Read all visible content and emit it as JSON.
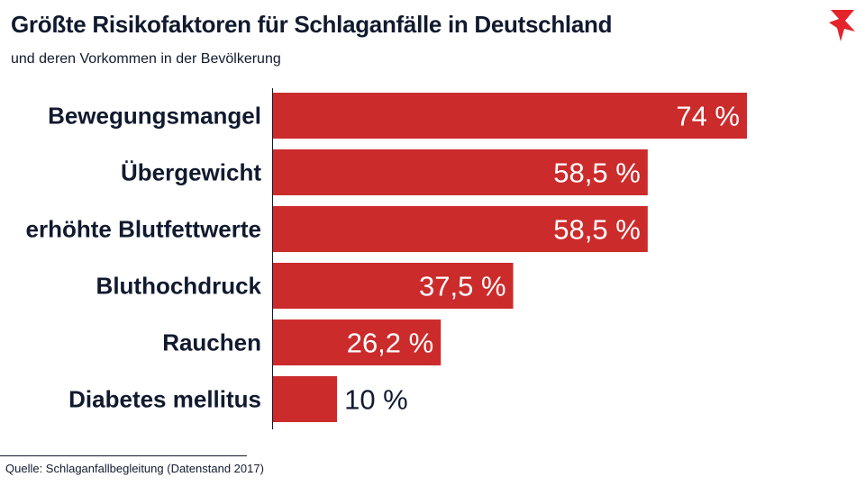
{
  "colors": {
    "bar": "#cc2b2b",
    "text": "#111a2e",
    "label_inside": "#ffffff",
    "logo": "#e3242b"
  },
  "logo_icon": "stern-star-logo",
  "chart_data": {
    "type": "bar",
    "orientation": "horizontal",
    "title": "Größte Risikofaktoren für Schlaganfälle in Deutschland",
    "subtitle": "und deren Vorkommen in der Bevölkerung",
    "categories": [
      "Bewegungsmangel",
      "Übergewicht",
      "erhöhte Blutfettwerte",
      "Bluthochdruck",
      "Rauchen",
      "Diabetes mellitus"
    ],
    "values": [
      74,
      58.5,
      58.5,
      37.5,
      26.2,
      10
    ],
    "value_labels": [
      "74 %",
      "58,5 %",
      "58,5 %",
      "37,5 %",
      "26,2 %",
      "10 %"
    ],
    "unit": "%",
    "xlim": [
      0,
      74
    ],
    "xlabel": "",
    "ylabel": "",
    "grid": false,
    "legend": "none"
  },
  "source": "Quelle: Schlaganfallbegleitung (Datenstand 2017)"
}
